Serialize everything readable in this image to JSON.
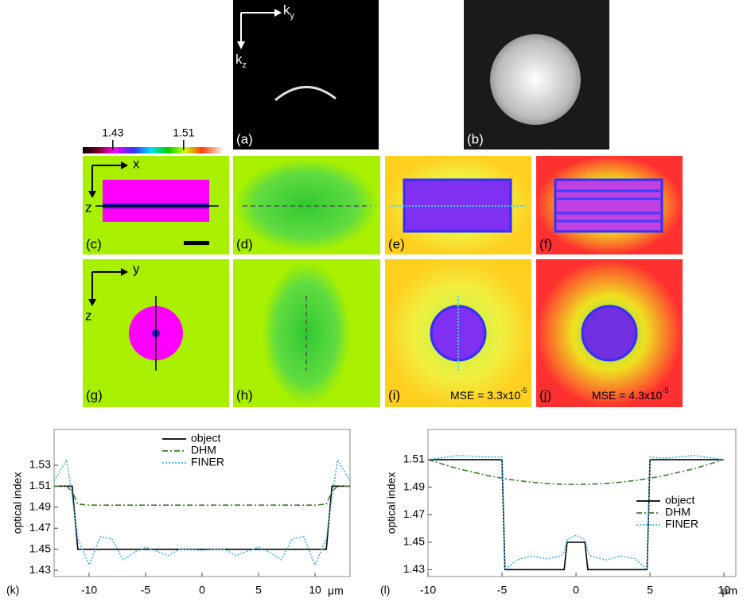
{
  "figure": {
    "panels": [
      "(a)",
      "(b)",
      "(c)",
      "(d)",
      "(e)",
      "(f)",
      "(g)",
      "(h)",
      "(i)",
      "(j)"
    ],
    "kspace_axes": [
      {
        "base": "k",
        "sub": "y"
      },
      {
        "base": "k",
        "sub": "z"
      }
    ],
    "colorbar": {
      "ticks": [
        1.43,
        1.51
      ],
      "lim": [
        1.396,
        1.556
      ]
    },
    "xz_axes": [
      "x",
      "z"
    ],
    "yz_axes": [
      "y",
      "z"
    ],
    "mse": [
      {
        "text": "MSE = 3.3x10",
        "exp": "-5"
      },
      {
        "text": "MSE = 4.3x10",
        "exp": "-5"
      }
    ]
  },
  "chart_data": [
    {
      "type": "line",
      "panel": "(k)",
      "ylabel": "optical index",
      "xunit": "μm",
      "legend": "upper center",
      "x": [
        -13.1,
        -12,
        -11.5,
        -11,
        -10,
        -9,
        -8,
        -7,
        -6,
        -5,
        -4,
        -3,
        -2,
        -1,
        0,
        1,
        2,
        3,
        4,
        5,
        6,
        7,
        8,
        9,
        10,
        11,
        11.5,
        12,
        13.1
      ],
      "xlim": [
        -13.1,
        13.1
      ],
      "xticks": [
        -10,
        -5,
        0,
        5,
        10
      ],
      "ylim": [
        1.424,
        1.564
      ],
      "yticks": [
        1.43,
        1.45,
        1.47,
        1.49,
        1.51,
        1.53
      ],
      "series": [
        {
          "name": "object",
          "color": "#000000",
          "values": [
            1.51,
            1.51,
            1.51,
            1.45,
            1.45,
            1.45,
            1.45,
            1.45,
            1.45,
            1.45,
            1.45,
            1.45,
            1.45,
            1.45,
            1.45,
            1.45,
            1.45,
            1.45,
            1.45,
            1.45,
            1.45,
            1.45,
            1.45,
            1.45,
            1.45,
            1.45,
            1.51,
            1.51,
            1.51
          ]
        },
        {
          "name": "DHM",
          "color": "#3a7d2a",
          "values": [
            1.51,
            1.51,
            1.505,
            1.493,
            1.492,
            1.492,
            1.492,
            1.492,
            1.492,
            1.492,
            1.492,
            1.492,
            1.492,
            1.492,
            1.492,
            1.492,
            1.492,
            1.492,
            1.492,
            1.492,
            1.492,
            1.492,
            1.492,
            1.492,
            1.492,
            1.493,
            1.505,
            1.51,
            1.51
          ]
        },
        {
          "name": "FINER",
          "color": "#3bb5e8",
          "values": [
            1.515,
            1.535,
            1.5,
            1.46,
            1.435,
            1.462,
            1.46,
            1.44,
            1.447,
            1.452,
            1.448,
            1.444,
            1.45,
            1.45,
            1.449,
            1.45,
            1.45,
            1.444,
            1.448,
            1.452,
            1.447,
            1.44,
            1.46,
            1.462,
            1.435,
            1.46,
            1.5,
            1.535,
            1.515
          ]
        }
      ]
    },
    {
      "type": "line",
      "panel": "(l)",
      "ylabel": "optical index",
      "xunit": "μm",
      "legend": "lower right",
      "x": [
        -10,
        -8,
        -6,
        -5,
        -4.8,
        -4,
        -3,
        -2,
        -1,
        -0.8,
        -0.6,
        0,
        0.6,
        0.8,
        1,
        2,
        3,
        4,
        4.8,
        5,
        6,
        8,
        10
      ],
      "xlim": [
        -10,
        10.8
      ],
      "xticks": [
        -10,
        -5,
        0,
        5,
        10
      ],
      "ylim": [
        1.425,
        1.532
      ],
      "yticks": [
        1.43,
        1.45,
        1.47,
        1.49,
        1.51
      ],
      "series": [
        {
          "name": "object",
          "color": "#000000",
          "values": [
            1.51,
            1.51,
            1.51,
            1.51,
            1.43,
            1.43,
            1.43,
            1.43,
            1.43,
            1.43,
            1.45,
            1.45,
            1.45,
            1.43,
            1.43,
            1.43,
            1.43,
            1.43,
            1.43,
            1.51,
            1.51,
            1.51,
            1.51
          ]
        },
        {
          "name": "DHM",
          "color": "#3a7d2a",
          "values": [
            1.51,
            1.5035,
            1.4985,
            1.4965,
            1.4961,
            1.4949,
            1.4936,
            1.4927,
            1.4922,
            1.4921,
            1.4921,
            1.492,
            1.4921,
            1.4921,
            1.4922,
            1.4927,
            1.4936,
            1.4949,
            1.4961,
            1.4965,
            1.4985,
            1.5035,
            1.51
          ]
        },
        {
          "name": "FINER",
          "color": "#3bb5e8",
          "values": [
            1.51,
            1.513,
            1.512,
            1.512,
            1.43,
            1.437,
            1.44,
            1.438,
            1.44,
            1.443,
            1.452,
            1.455,
            1.452,
            1.443,
            1.44,
            1.437,
            1.44,
            1.438,
            1.43,
            1.512,
            1.511,
            1.513,
            1.51
          ]
        }
      ]
    }
  ]
}
